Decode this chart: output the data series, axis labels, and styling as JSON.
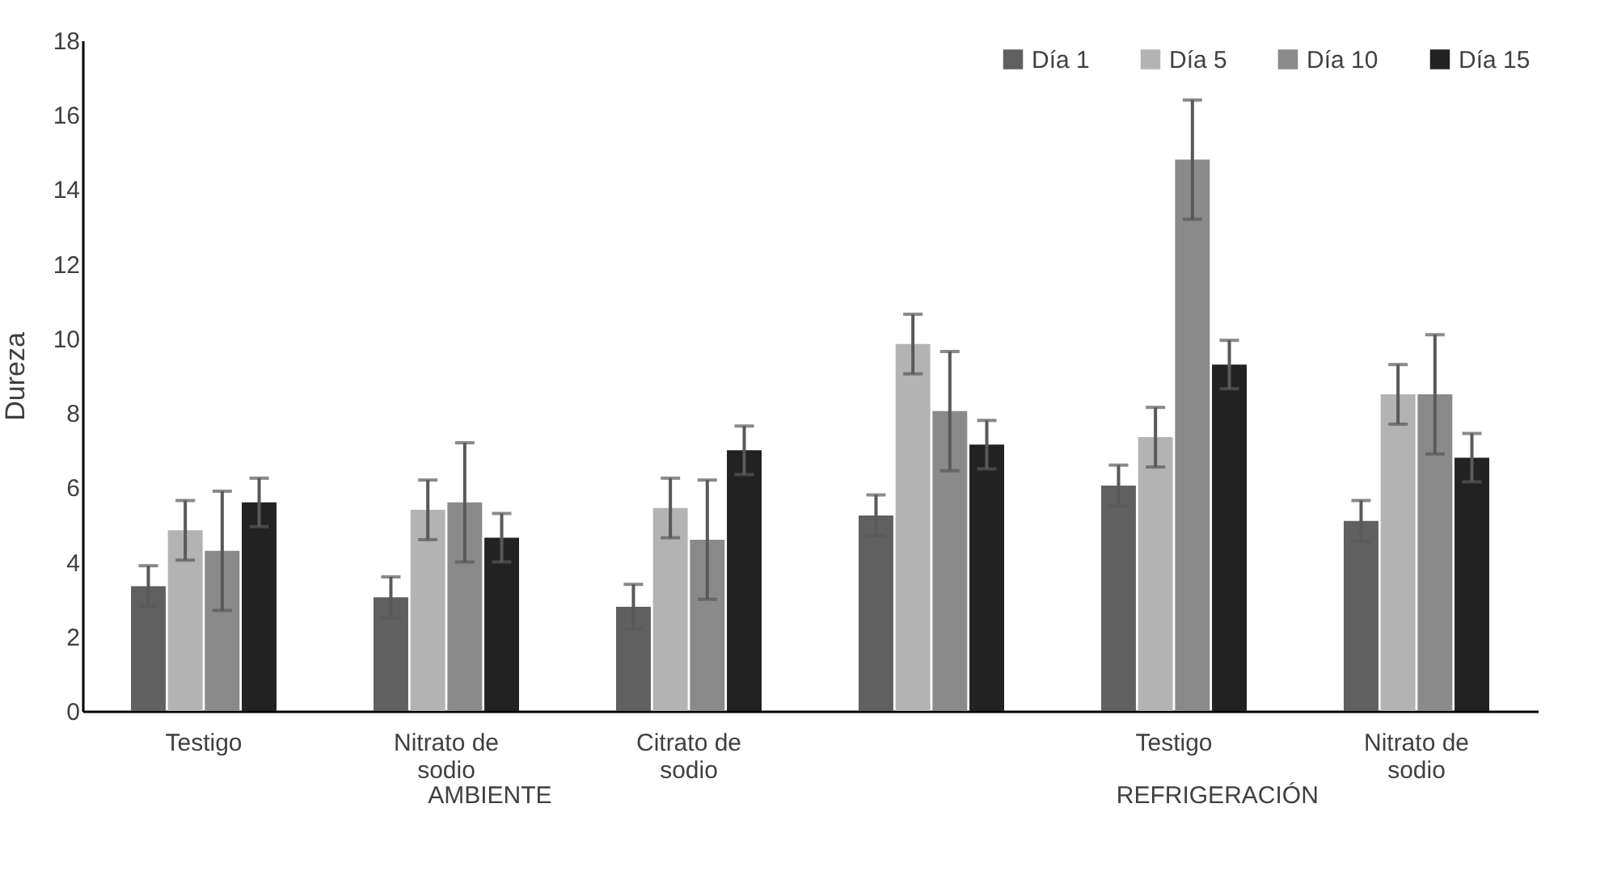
{
  "chart_data": {
    "type": "bar",
    "ylabel": "Dureza",
    "categories": [
      "Testigo",
      "Nitrato de sodio",
      "Citrato de sodio",
      null,
      "Testigo",
      "Nitrato de sodio"
    ],
    "series": [
      {
        "name": "Día 1",
        "color": "#606060",
        "values": [
          3.35,
          3.05,
          2.8,
          5.25,
          6.05,
          5.1
        ],
        "errors": [
          0.55,
          0.55,
          0.6,
          0.55,
          0.55,
          0.55
        ]
      },
      {
        "name": "Día 5",
        "color": "#b3b3b3",
        "values": [
          4.85,
          5.4,
          5.45,
          9.85,
          7.35,
          8.5
        ],
        "errors": [
          0.8,
          0.8,
          0.8,
          0.8,
          0.8,
          0.8
        ]
      },
      {
        "name": "Día 10",
        "color": "#8a8a8a",
        "values": [
          4.3,
          5.6,
          4.6,
          8.05,
          14.8,
          8.5
        ],
        "errors": [
          1.6,
          1.6,
          1.6,
          1.6,
          1.6,
          1.6
        ]
      },
      {
        "name": "Día 15",
        "color": "#222222",
        "values": [
          5.6,
          4.65,
          7.0,
          7.15,
          9.3,
          6.8
        ],
        "errors": [
          0.65,
          0.65,
          0.65,
          0.65,
          0.65,
          0.65
        ]
      }
    ],
    "ylim": [
      0,
      18
    ],
    "yticks": [
      0,
      2,
      4,
      6,
      8,
      10,
      12,
      14,
      16,
      18
    ],
    "legend": "top right",
    "grid": false,
    "annotations": [
      "AMBIENTE",
      "REFRIGERACIÓN"
    ]
  }
}
